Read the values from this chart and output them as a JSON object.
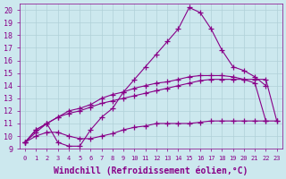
{
  "xlabel": "Windchill (Refroidissement éolien,°C)",
  "bg_color": "#cce8ee",
  "line_color": "#880088",
  "xlim": [
    -0.5,
    23.5
  ],
  "ylim": [
    9,
    20.5
  ],
  "xticks": [
    0,
    1,
    2,
    3,
    4,
    5,
    6,
    7,
    8,
    9,
    10,
    11,
    12,
    13,
    14,
    15,
    16,
    17,
    18,
    19,
    20,
    21,
    22,
    23
  ],
  "yticks": [
    9,
    10,
    11,
    12,
    13,
    14,
    15,
    16,
    17,
    18,
    19,
    20
  ],
  "lines": [
    {
      "comment": "zigzag line - rises high to peak ~20 at x=15, drops sharply",
      "x": [
        0,
        1,
        2,
        3,
        4,
        5,
        6,
        7,
        8,
        9,
        10,
        11,
        12,
        13,
        14,
        15,
        16,
        17,
        18,
        19,
        20,
        21,
        22
      ],
      "y": [
        9.5,
        10.5,
        11.0,
        9.5,
        9.2,
        9.2,
        10.5,
        11.5,
        12.2,
        13.5,
        14.5,
        15.5,
        16.5,
        17.5,
        18.5,
        20.2,
        19.8,
        18.5,
        16.8,
        15.5,
        15.2,
        14.7,
        14.0
      ]
    },
    {
      "comment": "upper band - gently sloping upward, ends ~14-15 around x=21-22",
      "x": [
        0,
        1,
        2,
        3,
        4,
        5,
        6,
        7,
        8,
        9,
        10,
        11,
        12,
        13,
        14,
        15,
        16,
        17,
        18,
        19,
        20,
        21,
        22
      ],
      "y": [
        9.5,
        10.3,
        11.0,
        11.5,
        12.0,
        12.2,
        12.5,
        13.0,
        13.3,
        13.5,
        13.8,
        14.0,
        14.2,
        14.3,
        14.5,
        14.7,
        14.8,
        14.8,
        14.8,
        14.7,
        14.5,
        14.2,
        11.2
      ]
    },
    {
      "comment": "lower flat band - stays around 10-11",
      "x": [
        0,
        1,
        2,
        3,
        4,
        5,
        6,
        7,
        8,
        9,
        10,
        11,
        12,
        13,
        14,
        15,
        16,
        17,
        18,
        19,
        20,
        21,
        22,
        23
      ],
      "y": [
        9.5,
        10.0,
        10.3,
        10.3,
        10.0,
        9.8,
        9.8,
        10.0,
        10.2,
        10.5,
        10.7,
        10.8,
        11.0,
        11.0,
        11.0,
        11.0,
        11.1,
        11.2,
        11.2,
        11.2,
        11.2,
        11.2,
        11.2,
        11.2
      ]
    },
    {
      "comment": "middle rising line - from ~10 rises to ~15",
      "x": [
        0,
        1,
        2,
        3,
        4,
        5,
        6,
        7,
        8,
        9,
        10,
        11,
        12,
        13,
        14,
        15,
        16,
        17,
        18,
        19,
        20,
        21,
        22,
        23
      ],
      "y": [
        9.5,
        10.5,
        11.0,
        11.5,
        11.8,
        12.0,
        12.3,
        12.6,
        12.8,
        13.0,
        13.2,
        13.4,
        13.6,
        13.8,
        14.0,
        14.2,
        14.4,
        14.5,
        14.5,
        14.5,
        14.5,
        14.5,
        14.5,
        11.2
      ]
    }
  ],
  "font_color": "#880088",
  "grid_color": "#b0d0d8",
  "tick_fontsize": 6,
  "label_fontsize": 7
}
